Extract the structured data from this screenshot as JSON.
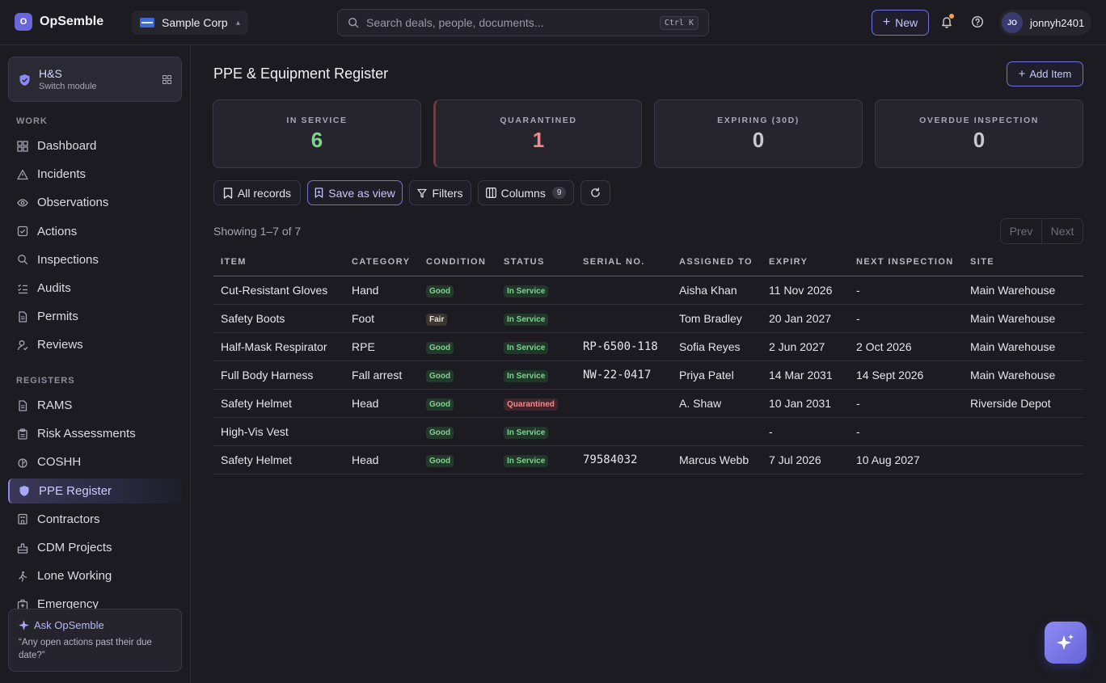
{
  "app": {
    "name": "OpSemble",
    "logo_letter": "O"
  },
  "org": {
    "name": "Sample Corp"
  },
  "search": {
    "placeholder": "Search deals, people, documents...",
    "shortcut": "Ctrl K"
  },
  "header": {
    "new_label": "New",
    "user_initials": "JO",
    "username": "jonnyh2401",
    "accent": "#7471e0"
  },
  "sidebar": {
    "module": {
      "title": "H&S",
      "subtitle": "Switch module"
    },
    "work_heading": "WORK",
    "work_items": [
      {
        "label": "Dashboard",
        "icon": "grid-icon"
      },
      {
        "label": "Incidents",
        "icon": "warning-triangle-icon"
      },
      {
        "label": "Observations",
        "icon": "eye-icon"
      },
      {
        "label": "Actions",
        "icon": "checkbox-icon"
      },
      {
        "label": "Inspections",
        "icon": "search-icon"
      },
      {
        "label": "Audits",
        "icon": "list-check-icon"
      },
      {
        "label": "Permits",
        "icon": "document-icon"
      },
      {
        "label": "Reviews",
        "icon": "person-review-icon"
      }
    ],
    "registers_heading": "REGISTERS",
    "register_items": [
      {
        "label": "RAMS",
        "icon": "document-icon"
      },
      {
        "label": "Risk Assessments",
        "icon": "clipboard-icon"
      },
      {
        "label": "COSHH",
        "icon": "flask-icon"
      },
      {
        "label": "PPE Register",
        "icon": "shield-icon",
        "active": true
      },
      {
        "label": "Contractors",
        "icon": "building-icon"
      },
      {
        "label": "CDM Projects",
        "icon": "construction-icon"
      },
      {
        "label": "Lone Working",
        "icon": "walking-person-icon"
      },
      {
        "label": "Emergency",
        "icon": "emergency-kit-icon"
      }
    ],
    "ask": {
      "title": "Ask OpSemble",
      "prompt": "“Any open actions past their due date?”"
    }
  },
  "page": {
    "title": "PPE & Equipment Register",
    "add_label": "Add Item"
  },
  "stats": [
    {
      "label": "IN SERVICE",
      "value": "6",
      "color": "#7fd38f"
    },
    {
      "label": "QUARANTINED",
      "value": "1",
      "color": "#f08a8a"
    },
    {
      "label": "EXPIRING (30D)",
      "value": "0",
      "color": "#c9c8d0"
    },
    {
      "label": "OVERDUE INSPECTION",
      "value": "0",
      "color": "#c9c8d0"
    }
  ],
  "toolbar": {
    "all_records": "All records",
    "save_view": "Save as view",
    "filters": "Filters",
    "columns": "Columns",
    "columns_count": "9"
  },
  "list": {
    "showing": "Showing 1–7 of 7",
    "prev": "Prev",
    "next": "Next"
  },
  "table": {
    "headers": [
      "ITEM",
      "CATEGORY",
      "CONDITION",
      "STATUS",
      "SERIAL NO.",
      "ASSIGNED TO",
      "EXPIRY",
      "NEXT INSPECTION",
      "SITE"
    ],
    "rows": [
      {
        "item": "Cut-Resistant Gloves",
        "category": "Hand",
        "condition": "Good",
        "status": "In Service",
        "serial": "",
        "assigned": "Aisha Khan",
        "expiry": "11 Nov 2026",
        "next_inspection": "-",
        "site": "Main Warehouse"
      },
      {
        "item": "Safety Boots",
        "category": "Foot",
        "condition": "Fair",
        "status": "In Service",
        "serial": "",
        "assigned": "Tom Bradley",
        "expiry": "20 Jan 2027",
        "next_inspection": "-",
        "site": "Main Warehouse"
      },
      {
        "item": "Half-Mask Respirator",
        "category": "RPE",
        "condition": "Good",
        "status": "In Service",
        "serial": "RP-6500-118",
        "assigned": "Sofia Reyes",
        "expiry": "2 Jun 2027",
        "next_inspection": "2 Oct 2026",
        "site": "Main Warehouse"
      },
      {
        "item": "Full Body Harness",
        "category": "Fall arrest",
        "condition": "Good",
        "status": "In Service",
        "serial": "NW-22-0417",
        "assigned": "Priya Patel",
        "expiry": "14 Mar 2031",
        "next_inspection": "14 Sept 2026",
        "site": "Main Warehouse"
      },
      {
        "item": "Safety Helmet",
        "category": "Head",
        "condition": "Good",
        "status": "Quarantined",
        "serial": "",
        "assigned": "A. Shaw",
        "expiry": "10 Jan 2031",
        "next_inspection": "-",
        "site": "Riverside Depot"
      },
      {
        "item": "High-Vis Vest",
        "category": "",
        "condition": "Good",
        "status": "In Service",
        "serial": "",
        "assigned": "",
        "expiry": "-",
        "next_inspection": "-",
        "site": ""
      },
      {
        "item": "Safety Helmet",
        "category": "Head",
        "condition": "Good",
        "status": "In Service",
        "serial": "79584032",
        "assigned": "Marcus Webb",
        "expiry": "7 Jul 2026",
        "expiry_overdue": true,
        "next_inspection": "10 Aug 2027",
        "site": ""
      }
    ]
  }
}
